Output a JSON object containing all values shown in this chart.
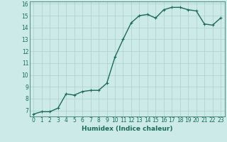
{
  "x": [
    0,
    1,
    2,
    3,
    4,
    5,
    6,
    7,
    8,
    9,
    10,
    11,
    12,
    13,
    14,
    15,
    16,
    17,
    18,
    19,
    20,
    21,
    22,
    23
  ],
  "y": [
    6.7,
    6.9,
    6.9,
    7.2,
    8.4,
    8.3,
    8.6,
    8.7,
    8.7,
    9.3,
    11.5,
    13.0,
    14.4,
    15.0,
    15.1,
    14.8,
    15.5,
    15.7,
    15.7,
    15.5,
    15.4,
    14.3,
    14.2,
    14.8
  ],
  "line_color": "#1a6b5a",
  "marker": "+",
  "marker_size": 3,
  "bg_color": "#cceae8",
  "grid_color": "#b0cece",
  "xlabel": "Humidex (Indice chaleur)",
  "ylim": [
    6.5,
    16.2
  ],
  "yticks": [
    7,
    8,
    9,
    10,
    11,
    12,
    13,
    14,
    15,
    16
  ],
  "xlim": [
    -0.5,
    23.5
  ],
  "xticks": [
    0,
    1,
    2,
    3,
    4,
    5,
    6,
    7,
    8,
    9,
    10,
    11,
    12,
    13,
    14,
    15,
    16,
    17,
    18,
    19,
    20,
    21,
    22,
    23
  ],
  "tick_fontsize": 5.5,
  "xlabel_fontsize": 6.5,
  "line_width": 1.0
}
